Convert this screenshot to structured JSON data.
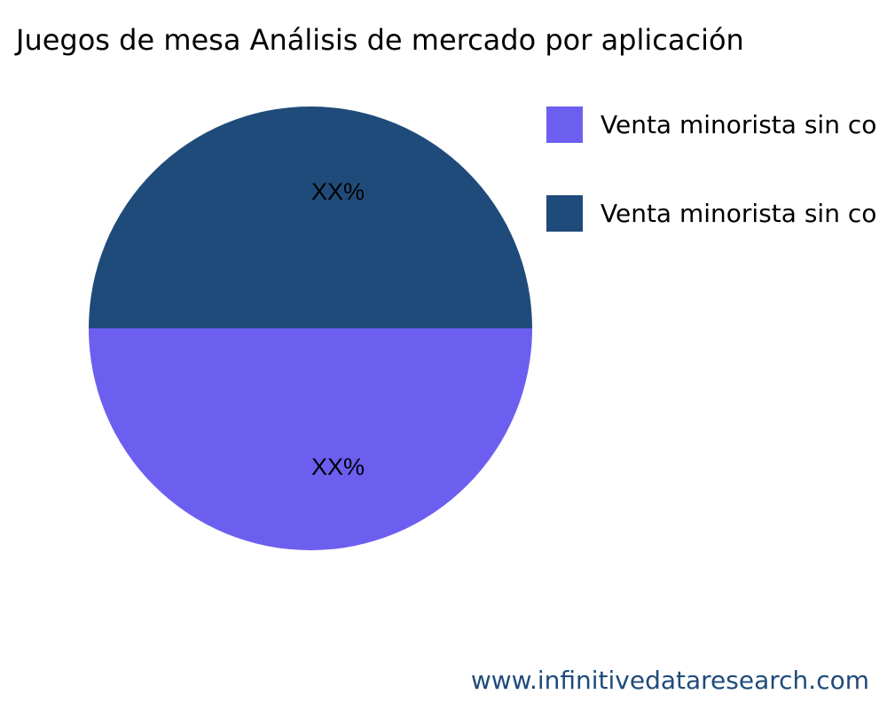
{
  "chart_data": {
    "type": "pie",
    "title": "Juegos de mesa Análisis de mercado por aplicación",
    "slices": [
      {
        "label": "Venta minorista sin co",
        "value": 50,
        "text": "XX%",
        "color": "#6c5ff0"
      },
      {
        "label": "Venta minorista sin co",
        "value": 50,
        "text": "XX%",
        "color": "#1f4b7a"
      }
    ],
    "legend_position": "right"
  },
  "footer": "www.infinitivedataresearch.com"
}
